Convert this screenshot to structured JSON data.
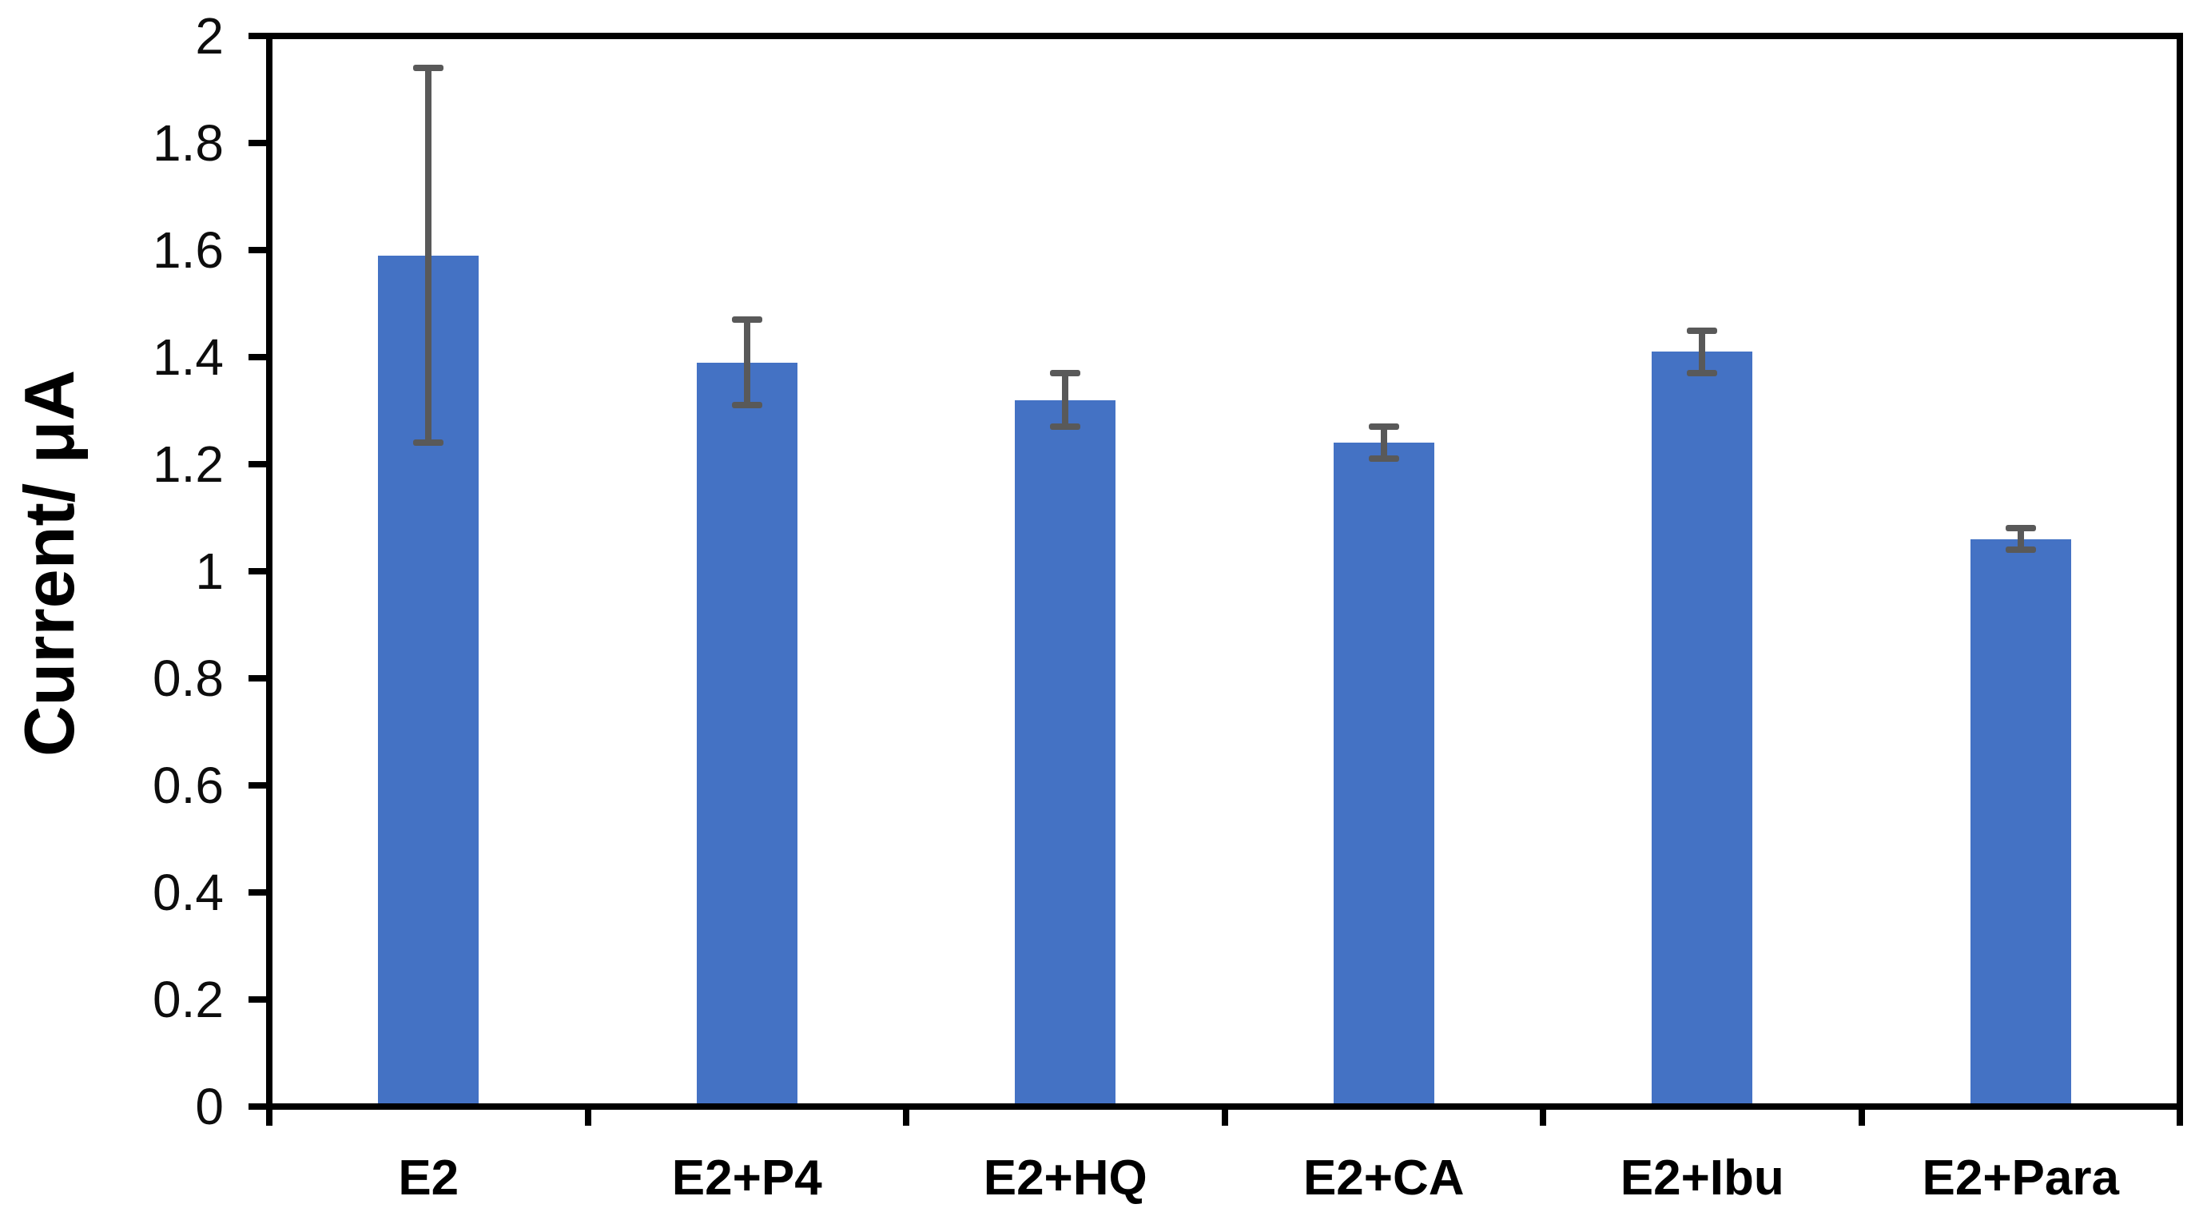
{
  "chart_data": {
    "type": "bar",
    "categories": [
      "E2",
      "E2+P4",
      "E2+HQ",
      "E2+CA",
      "E2+Ibu",
      "E2+Para"
    ],
    "values": [
      1.59,
      1.39,
      1.32,
      1.24,
      1.41,
      1.06
    ],
    "error_bars": [
      0.35,
      0.08,
      0.05,
      0.03,
      0.04,
      0.02
    ],
    "title": "",
    "xlabel": "",
    "ylabel": "Current/ μA",
    "ylim": [
      0,
      2
    ],
    "y_tick_step": 0.2,
    "y_tick_labels": [
      "0",
      "0.2",
      "0.4",
      "0.6",
      "0.8",
      "1",
      "1.2",
      "1.4",
      "1.6",
      "1.8",
      "2"
    ],
    "grid": false,
    "legend": false,
    "bar_color": "#4472C4",
    "error_bar_color": "#595959",
    "axis_color": "#000000",
    "tick_label_color": "#0d0d0d"
  }
}
